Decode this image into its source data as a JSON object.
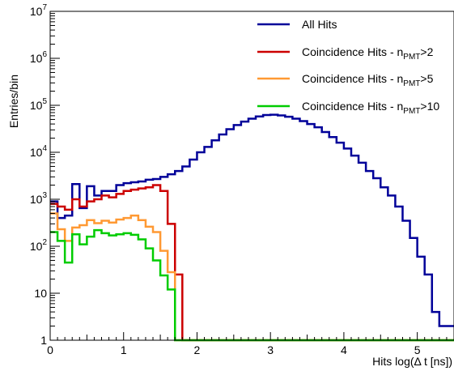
{
  "chart_data": {
    "type": "line",
    "style": "step histogram",
    "xlabel": "Hits log(Δ t [ns])",
    "ylabel": "Entries/bin",
    "x_scale": "linear",
    "y_scale": "log",
    "xlim": [
      0,
      5.5
    ],
    "ylim": [
      1,
      10000000
    ],
    "x_ticks": [
      0,
      1,
      2,
      3,
      4,
      5
    ],
    "x_tick_labels": [
      "0",
      "1",
      "2",
      "3",
      "4",
      "5"
    ],
    "y_ticks": [
      1,
      10,
      100,
      1000,
      10000,
      100000,
      1000000,
      10000000
    ],
    "y_tick_labels": [
      {
        "base": "1",
        "exp": ""
      },
      {
        "base": "10",
        "exp": ""
      },
      {
        "base": "10",
        "exp": "2"
      },
      {
        "base": "10",
        "exp": "3"
      },
      {
        "base": "10",
        "exp": "4"
      },
      {
        "base": "10",
        "exp": "5"
      },
      {
        "base": "10",
        "exp": "6"
      },
      {
        "base": "10",
        "exp": "7"
      }
    ],
    "grid": false,
    "legend_position": "top-right",
    "bin_width": 0.1,
    "bin_edges_start": 0,
    "series": [
      {
        "legend": {
          "text": "All Hits",
          "sub": "",
          "suffix": ""
        },
        "color": "#000099",
        "values": [
          900,
          400,
          450,
          2100,
          650,
          1900,
          1200,
          1500,
          1500,
          2000,
          2200,
          2300,
          2400,
          2600,
          2700,
          3000,
          3400,
          4000,
          5000,
          7000,
          10000,
          13000,
          18000,
          24000,
          31000,
          38000,
          45000,
          52000,
          58000,
          62000,
          63000,
          61000,
          57000,
          52000,
          46000,
          40000,
          34000,
          27000,
          21000,
          16000,
          12000,
          8500,
          6000,
          4000,
          2800,
          1800,
          1200,
          700,
          350,
          150,
          60,
          25,
          4,
          2,
          2
        ]
      },
      {
        "legend": {
          "text": "Coincidence Hits - n",
          "sub": "PMT",
          "suffix": ">2"
        },
        "color": "#cc0000",
        "values": [
          800,
          700,
          600,
          1000,
          700,
          900,
          1000,
          1200,
          1100,
          1300,
          1500,
          1600,
          1700,
          1800,
          2000,
          1500,
          300,
          25,
          1,
          1,
          1,
          1,
          1,
          1,
          1,
          1,
          1,
          1,
          1,
          1,
          1,
          1,
          1,
          1,
          1,
          1,
          1,
          1,
          1,
          1,
          1,
          1,
          1,
          1,
          1,
          1,
          1,
          1,
          1,
          1,
          1,
          1,
          1,
          1,
          1
        ]
      },
      {
        "legend": {
          "text": "Coincidence Hits - n",
          "sub": "PMT",
          "suffix": ">5"
        },
        "color": "#ff9933",
        "values": [
          500,
          230,
          130,
          250,
          280,
          360,
          310,
          350,
          320,
          370,
          400,
          450,
          360,
          260,
          200,
          80,
          28,
          1,
          1,
          1,
          1,
          1,
          1,
          1,
          1,
          1,
          1,
          1,
          1,
          1,
          1,
          1,
          1,
          1,
          1,
          1,
          1,
          1,
          1,
          1,
          1,
          1,
          1,
          1,
          1,
          1,
          1,
          1,
          1,
          1,
          1,
          1,
          1,
          1,
          1
        ]
      },
      {
        "legend": {
          "text": "Coincidence Hits - n",
          "sub": "PMT",
          "suffix": ">10"
        },
        "color": "#00cc00",
        "values": [
          200,
          130,
          45,
          180,
          110,
          160,
          220,
          190,
          170,
          180,
          190,
          175,
          140,
          90,
          50,
          24,
          12,
          1,
          1,
          1,
          1,
          1,
          1,
          1,
          1,
          1,
          1,
          1,
          1,
          1,
          1,
          1,
          1,
          1,
          1,
          1,
          1,
          1,
          1,
          1,
          1,
          1,
          1,
          1,
          1,
          1,
          1,
          1,
          1,
          1,
          1,
          1,
          1,
          1,
          1
        ]
      }
    ]
  }
}
